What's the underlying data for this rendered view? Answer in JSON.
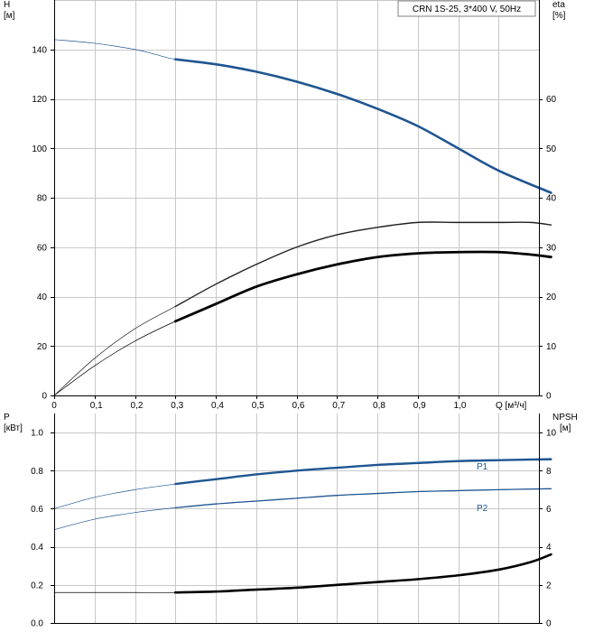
{
  "chart_data": [
    {
      "type": "line",
      "title": "CRN 1S-25, 3*400 V, 50Hz",
      "xlabel": "Q [м³/ч]",
      "x_ticks": [
        "0",
        "0,1",
        "0,2",
        "0,3",
        "0,4",
        "0,5",
        "0,6",
        "0,7",
        "0,8",
        "0,9",
        "1,0"
      ],
      "xlim": [
        0,
        1.2
      ],
      "ylabel_left": {
        "name": "H",
        "unit": "[м]"
      },
      "ylabel_right": {
        "name": "eta",
        "unit": "[%]"
      },
      "ylim_left": [
        0,
        160
      ],
      "ylim_right": [
        0,
        80
      ],
      "y_ticks_left": [
        "0",
        "20",
        "40",
        "60",
        "80",
        "100",
        "120",
        "140"
      ],
      "y_ticks_right": [
        "0",
        "10",
        "20",
        "30",
        "40",
        "50",
        "60"
      ],
      "grid": true,
      "legend_placement": "top-right",
      "series": [
        {
          "key": "H",
          "axis": "left",
          "color": "#1f5591",
          "x": [
            0.0,
            0.1,
            0.2,
            0.25,
            0.3,
            0.4,
            0.5,
            0.6,
            0.7,
            0.8,
            0.9,
            1.0,
            1.1,
            1.23
          ],
          "y": [
            144,
            142.5,
            140,
            138,
            136,
            134,
            131,
            127,
            122,
            116,
            109,
            100,
            91,
            82
          ]
        },
        {
          "key": "eta_eta",
          "axis": "left",
          "color": "#222222",
          "x": [
            0.0,
            0.1,
            0.2,
            0.3,
            0.4,
            0.5,
            0.6,
            0.7,
            0.8,
            0.9,
            1.0,
            1.1,
            1.18,
            1.23
          ],
          "y": [
            0,
            15,
            27,
            36,
            45,
            53,
            60,
            65,
            68,
            70,
            70,
            70,
            70,
            69
          ]
        },
        {
          "key": "eta_total",
          "axis": "left",
          "color": "#000000",
          "x": [
            0.0,
            0.1,
            0.2,
            0.3,
            0.4,
            0.5,
            0.6,
            0.7,
            0.8,
            0.9,
            1.0,
            1.1,
            1.18,
            1.23
          ],
          "y": [
            0,
            12,
            22,
            30,
            37,
            44,
            49,
            53,
            56,
            57.5,
            58,
            58,
            57,
            56
          ]
        }
      ]
    },
    {
      "type": "line",
      "xlim": [
        0,
        1.2
      ],
      "ylabel_left": {
        "name": "P",
        "unit": "[кВт]"
      },
      "ylabel_right": {
        "name": "NPSH",
        "unit": "[м]"
      },
      "ylim_left": [
        0,
        1.1
      ],
      "ylim_right": [
        0,
        11
      ],
      "y_ticks_left": [
        "0.0",
        "0.2",
        "0.4",
        "0.6",
        "0.8",
        "1.0"
      ],
      "y_ticks_right": [
        "0",
        "2",
        "4",
        "6",
        "8",
        "10"
      ],
      "grid": true,
      "series": [
        {
          "key": "P1",
          "name": "P1",
          "axis": "left",
          "color": "#1f5591",
          "x": [
            0.0,
            0.1,
            0.2,
            0.3,
            0.4,
            0.5,
            0.6,
            0.7,
            0.8,
            0.9,
            1.0,
            1.1,
            1.23
          ],
          "y": [
            0.6,
            0.66,
            0.7,
            0.73,
            0.755,
            0.78,
            0.8,
            0.815,
            0.83,
            0.84,
            0.85,
            0.855,
            0.86
          ]
        },
        {
          "key": "P2",
          "name": "P2",
          "axis": "left",
          "color": "#1f5591",
          "x": [
            0.0,
            0.1,
            0.2,
            0.3,
            0.4,
            0.5,
            0.6,
            0.7,
            0.8,
            0.9,
            1.0,
            1.1,
            1.23
          ],
          "y": [
            0.49,
            0.545,
            0.58,
            0.605,
            0.625,
            0.64,
            0.655,
            0.67,
            0.68,
            0.69,
            0.695,
            0.7,
            0.705
          ]
        },
        {
          "key": "NPSH",
          "axis": "right",
          "color": "#000000",
          "x": [
            0.0,
            0.1,
            0.2,
            0.3,
            0.4,
            0.5,
            0.6,
            0.7,
            0.8,
            0.9,
            1.0,
            1.1,
            1.18,
            1.23
          ],
          "y": [
            1.6,
            1.6,
            1.6,
            1.6,
            1.65,
            1.75,
            1.85,
            2.0,
            2.15,
            2.3,
            2.5,
            2.8,
            3.2,
            3.6
          ]
        }
      ]
    }
  ],
  "colors": {
    "curve_blue": "#1f5591",
    "grid": "#c8c8c8",
    "axis": "#000000"
  }
}
